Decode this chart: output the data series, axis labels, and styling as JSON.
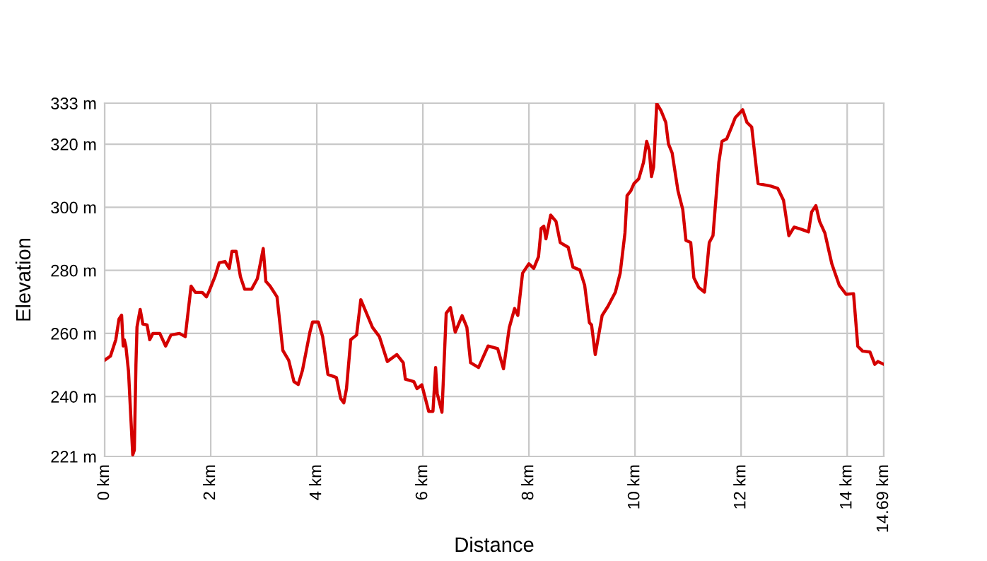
{
  "chart_data": {
    "type": "line",
    "xlabel": "Distance",
    "ylabel": "Elevation",
    "x": [
      0,
      0.11,
      0.21,
      0.27,
      0.32,
      0.35,
      0.37,
      0.4,
      0.45,
      0.48,
      0.53,
      0.56,
      0.59,
      0.61,
      0.67,
      0.72,
      0.8,
      0.85,
      0.91,
      1.04,
      1.15,
      1.25,
      1.41,
      1.52,
      1.63,
      1.71,
      1.84,
      1.92,
      1.97,
      2.08,
      2.16,
      2.27,
      2.35,
      2.4,
      2.48,
      2.56,
      2.64,
      2.77,
      2.88,
      2.99,
      3.04,
      3.12,
      3.25,
      3.36,
      3.47,
      3.57,
      3.65,
      3.73,
      3.87,
      3.92,
      4.03,
      4.11,
      4.21,
      4.37,
      4.45,
      4.51,
      4.56,
      4.64,
      4.75,
      4.83,
      5.05,
      5.18,
      5.33,
      5.51,
      5.63,
      5.67,
      5.83,
      5.89,
      5.98,
      6.11,
      6.19,
      6.24,
      6.27,
      6.36,
      6.44,
      6.52,
      6.61,
      6.74,
      6.83,
      6.9,
      7.05,
      7.23,
      7.41,
      7.52,
      7.63,
      7.73,
      7.79,
      7.88,
      8.0,
      8.09,
      8.18,
      8.23,
      8.28,
      8.32,
      8.41,
      8.51,
      8.59,
      8.74,
      8.83,
      8.96,
      9.05,
      9.14,
      9.18,
      9.25,
      9.38,
      9.49,
      9.63,
      9.72,
      9.81,
      9.85,
      9.92,
      9.98,
      10.07,
      10.16,
      10.22,
      10.27,
      10.31,
      10.35,
      10.41,
      10.49,
      10.58,
      10.63,
      10.7,
      10.81,
      10.9,
      10.96,
      11.05,
      11.11,
      11.2,
      11.31,
      11.4,
      11.47,
      11.58,
      11.64,
      11.73,
      11.82,
      11.89,
      12.03,
      12.11,
      12.2,
      12.32,
      12.56,
      12.69,
      12.8,
      12.9,
      13.0,
      13.14,
      13.27,
      13.33,
      13.41,
      13.48,
      13.58,
      13.71,
      13.85,
      13.98,
      14.12,
      14.2,
      14.29,
      14.43,
      14.52,
      14.58,
      14.69
    ],
    "series": [
      {
        "color": "#d40000",
        "values": [
          251.5,
          252.8,
          258,
          264.5,
          265.8,
          256,
          258,
          256,
          248,
          238,
          221.5,
          223,
          250,
          262,
          267.6,
          263,
          262.7,
          258,
          260,
          260,
          256,
          259.5,
          260,
          259,
          275,
          273,
          273,
          271.6,
          273.4,
          278,
          282.4,
          282.8,
          280.6,
          286,
          286,
          278,
          274,
          274,
          277.4,
          286.9,
          276.5,
          275,
          271.6,
          254.6,
          251.5,
          244.7,
          243.8,
          248.3,
          260.4,
          263.6,
          263.6,
          259,
          247,
          246,
          239.4,
          238,
          242.5,
          258,
          259.5,
          270.7,
          261.9,
          259,
          251.1,
          253.3,
          250.7,
          245.5,
          244.7,
          242.5,
          243.7,
          235.3,
          235.3,
          249.2,
          241,
          235,
          266.4,
          268.2,
          260.4,
          265.6,
          261.9,
          250.7,
          249.2,
          256,
          255.2,
          248.8,
          261.9,
          267.9,
          265.7,
          279.1,
          282.1,
          280.6,
          284.3,
          293.3,
          294,
          290,
          297.5,
          295.5,
          288.8,
          287.3,
          281,
          280.1,
          275.3,
          263.4,
          262.7,
          253.3,
          265.7,
          268.6,
          273.1,
          279.1,
          291.8,
          303.7,
          305.2,
          307.5,
          309,
          314.2,
          320.9,
          317.9,
          309.7,
          312.7,
          332.9,
          330.6,
          326.9,
          320.1,
          317.2,
          305.2,
          299.3,
          289.5,
          288.8,
          277.6,
          274.6,
          273.1,
          288.8,
          291,
          314.2,
          320.9,
          321.7,
          325.4,
          328.4,
          330.9,
          326.9,
          325.4,
          307.5,
          306.7,
          306,
          302.2,
          291,
          293.7,
          293,
          292.2,
          298.5,
          300.5,
          295.5,
          291.8,
          282.1,
          275.3,
          272.4,
          272.6,
          255.9,
          254.4,
          254.1,
          250.2,
          251.1,
          250.2
        ]
      }
    ],
    "xlim": [
      0,
      14.69
    ],
    "ylim": [
      221,
      333
    ],
    "xticks": [
      {
        "value": 0,
        "label": "0 km"
      },
      {
        "value": 2,
        "label": "2 km"
      },
      {
        "value": 4,
        "label": "4 km"
      },
      {
        "value": 6,
        "label": "6 km"
      },
      {
        "value": 8,
        "label": "8 km"
      },
      {
        "value": 10,
        "label": "10 km"
      },
      {
        "value": 12,
        "label": "12 km"
      },
      {
        "value": 14,
        "label": "14 km"
      },
      {
        "value": 14.69,
        "label": "14.69 km"
      }
    ],
    "yticks": [
      {
        "value": 221,
        "label": "221 m"
      },
      {
        "value": 240,
        "label": "240 m"
      },
      {
        "value": 260,
        "label": "260 m"
      },
      {
        "value": 280,
        "label": "280 m"
      },
      {
        "value": 300,
        "label": "300 m"
      },
      {
        "value": 320,
        "label": "320 m"
      },
      {
        "value": 333,
        "label": "333 m"
      }
    ],
    "grid": true,
    "line_style": "solid",
    "marker": "none"
  }
}
